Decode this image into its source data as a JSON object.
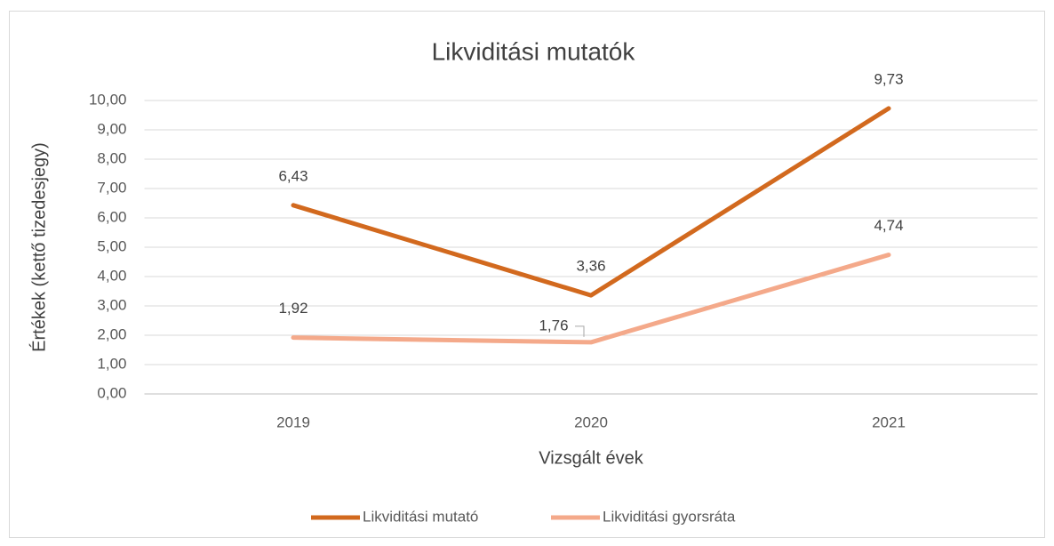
{
  "chart_data": {
    "type": "line",
    "title": "Likviditási mutatók",
    "x_label": "Vizsgált évek",
    "y_label": "Értékek (kettő tizedesjegy)",
    "categories": [
      "2019",
      "2020",
      "2021"
    ],
    "series": [
      {
        "name": "Likviditási mutató",
        "color": "#d2691e",
        "values": [
          6.43,
          3.36,
          9.73
        ],
        "value_labels": [
          "6,43",
          "3,36",
          "9,73"
        ]
      },
      {
        "name": "Likviditási gyorsráta",
        "color": "#f4a98a",
        "values": [
          1.92,
          1.76,
          4.74
        ],
        "value_labels": [
          "1,92",
          "1,76",
          "4,74"
        ]
      }
    ],
    "ylim": [
      0,
      10
    ],
    "yticks": [
      {
        "value": 0,
        "label": "0,00"
      },
      {
        "value": 1,
        "label": "1,00"
      },
      {
        "value": 2,
        "label": "2,00"
      },
      {
        "value": 3,
        "label": "3,00"
      },
      {
        "value": 4,
        "label": "4,00"
      },
      {
        "value": 5,
        "label": "5,00"
      },
      {
        "value": 6,
        "label": "6,00"
      },
      {
        "value": 7,
        "label": "7,00"
      },
      {
        "value": 8,
        "label": "8,00"
      },
      {
        "value": 9,
        "label": "9,00"
      },
      {
        "value": 10,
        "label": "10,00"
      }
    ],
    "grid": true,
    "legend": "bottom"
  }
}
